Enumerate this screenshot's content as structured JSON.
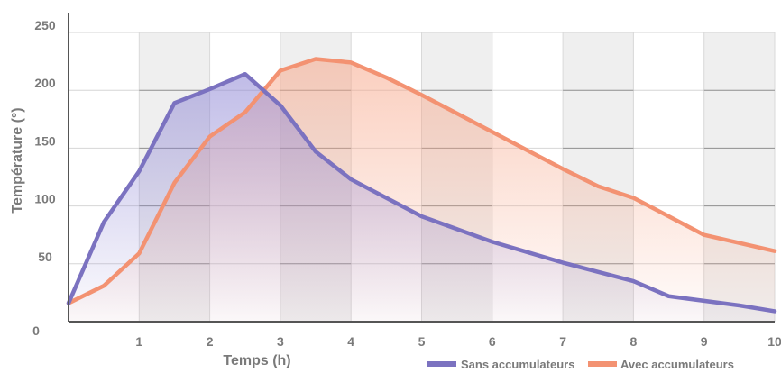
{
  "chart_data": {
    "type": "area",
    "xlabel": "Temps (h)",
    "ylabel": "Température (°)",
    "xlim": [
      0,
      10
    ],
    "ylim": [
      0,
      260
    ],
    "x_ticks": [
      "1",
      "2",
      "3",
      "4",
      "5",
      "6",
      "7",
      "8",
      "9",
      "10"
    ],
    "y_ticks": [
      "0",
      "50",
      "100",
      "150",
      "200",
      "250"
    ],
    "grid": "alternating vertical bands",
    "legend": "bottom-right",
    "series": [
      {
        "name": "Sans accumulateurs",
        "color": "#7b72c0",
        "x": [
          0,
          0.5,
          1,
          1.5,
          2,
          2.5,
          3,
          3.5,
          4,
          4.5,
          5,
          5.5,
          6,
          6.5,
          7,
          7.5,
          8,
          8.5,
          9,
          9.5,
          10
        ],
        "y": [
          16,
          86,
          130,
          189,
          201,
          214,
          187,
          147,
          123,
          107,
          91,
          80,
          69,
          60,
          51,
          43,
          35,
          22,
          18,
          14,
          9
        ]
      },
      {
        "name": "Avec accumulateurs",
        "color": "#f39272",
        "x": [
          0,
          0.5,
          1,
          1.5,
          2,
          2.5,
          3,
          3.5,
          4,
          4.5,
          5,
          5.5,
          6,
          6.5,
          7,
          7.5,
          8,
          8.5,
          9,
          9.5,
          10
        ],
        "y": [
          16,
          31,
          59,
          120,
          160,
          181,
          217,
          227,
          224,
          211,
          196,
          180,
          164,
          148,
          132,
          117,
          107,
          91,
          75,
          68,
          61
        ]
      }
    ]
  }
}
